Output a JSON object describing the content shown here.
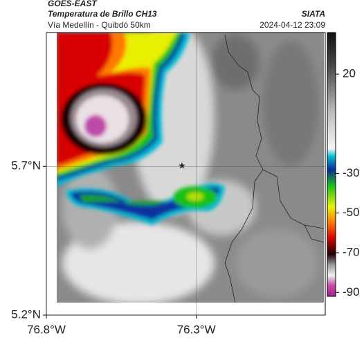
{
  "header": {
    "title": "GOES-EAST",
    "subtitle": "Temperatura de Brillo CH13",
    "region": "Vía Medellín - Quibdó 50km",
    "source": "SIATA",
    "datetime": "2024-04-12 23:09"
  },
  "map": {
    "xlim": [
      -76.8,
      -75.87
    ],
    "ylim": [
      5.2,
      6.15
    ],
    "xticks": [
      {
        "value": -76.8,
        "label": "76.8°W"
      },
      {
        "value": -76.3,
        "label": "76.3°W"
      }
    ],
    "yticks": [
      {
        "value": 5.2,
        "label": "5.2°N"
      },
      {
        "value": 5.7,
        "label": "5.7°N"
      }
    ],
    "grid": true
  },
  "colorbar": {
    "lim": [
      -92,
      41
    ],
    "ticks": [
      20,
      -30,
      -50,
      -70,
      -90
    ]
  }
}
